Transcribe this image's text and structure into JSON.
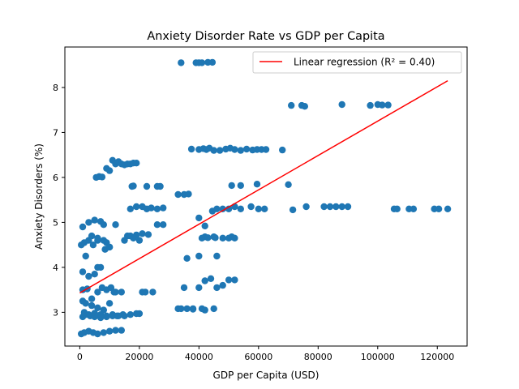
{
  "chart_data": {
    "type": "scatter",
    "title": "Anxiety Disorder Rate vs GDP per Capita",
    "xlabel": "GDP per Capita (USD)",
    "ylabel": "Anxiety Disorders (%)",
    "xlim": [
      -5000,
      130000
    ],
    "ylim": [
      2.25,
      8.9
    ],
    "x_ticks": [
      0,
      20000,
      40000,
      60000,
      80000,
      100000,
      120000
    ],
    "y_ticks": [
      3,
      4,
      5,
      6,
      7,
      8
    ],
    "grid": false,
    "legend_position": "top-right",
    "legend": [
      "Linear regression (R² = 0.40)"
    ],
    "point_color": "#1f77b4",
    "line_color": "#ff0000",
    "series": [
      {
        "kind": "points",
        "x": [
          34000,
          39000,
          40000,
          41000,
          43000,
          44500,
          71000,
          74500,
          75500,
          88000,
          97500,
          100000,
          101500,
          103500,
          37500,
          40000,
          41500,
          42500,
          43500,
          45000,
          47000,
          49000,
          50500,
          52000,
          54000,
          56000,
          58000,
          59500,
          61000,
          62500,
          68000,
          5500,
          6500,
          7500,
          9000,
          10000,
          11000,
          12000,
          13000,
          14000,
          15000,
          16000,
          17000,
          18000,
          19000,
          17500,
          18000,
          22500,
          26000,
          27000,
          33000,
          35000,
          36500,
          51000,
          54000,
          59500,
          70000,
          1000,
          3000,
          5000,
          7000,
          8000,
          17000,
          19000,
          21000,
          22500,
          24000,
          26000,
          28000,
          40000,
          42000,
          44500,
          46000,
          48000,
          50000,
          52000,
          54000,
          57500,
          60000,
          62000,
          71500,
          76000,
          82000,
          84000,
          86000,
          88000,
          90000,
          105500,
          106500,
          110500,
          112000,
          119000,
          120500,
          123500,
          500,
          1500,
          3000,
          4500,
          6000,
          9000,
          12000,
          26000,
          28000,
          42000,
          45000,
          51000,
          2000,
          4000,
          6000,
          8000,
          10000,
          15000,
          17000,
          19000,
          21000,
          23000,
          41000,
          43000,
          45500,
          48000,
          50000,
          52000,
          1000,
          3000,
          5000,
          6000,
          7000,
          8500,
          10000,
          16000,
          18000,
          20000,
          1000,
          2500,
          4000,
          6000,
          7500,
          9000,
          10500,
          11500,
          36000,
          40000,
          46000,
          1000,
          2000,
          4000,
          6000,
          8000,
          10000,
          12000,
          14000,
          35000,
          40000,
          42000,
          44000,
          46000,
          48000,
          50000,
          52000,
          1000,
          2000,
          3500,
          5000,
          7000,
          9000,
          11000,
          12500,
          14500,
          20000,
          22000,
          24500,
          34000,
          38000,
          41000,
          45000,
          1500,
          3000,
          5000,
          7000,
          9000,
          11000,
          13000,
          15000,
          17000,
          19000,
          21000,
          33000,
          36000,
          38000,
          42000,
          500,
          1500,
          3000,
          4500,
          6000,
          8000,
          10000,
          12000,
          14000
        ],
        "y": [
          8.55,
          8.55,
          8.55,
          8.55,
          8.56,
          8.56,
          7.6,
          7.6,
          7.58,
          7.62,
          7.6,
          7.62,
          7.61,
          7.61,
          6.63,
          6.62,
          6.64,
          6.62,
          6.65,
          6.6,
          6.6,
          6.63,
          6.65,
          6.62,
          6.6,
          6.63,
          6.61,
          6.62,
          6.62,
          6.62,
          6.61,
          6.0,
          6.02,
          6.01,
          6.2,
          6.15,
          6.38,
          6.3,
          6.35,
          6.3,
          6.28,
          6.3,
          6.3,
          6.32,
          6.32,
          5.8,
          5.81,
          5.8,
          5.8,
          5.8,
          5.62,
          5.62,
          5.63,
          5.82,
          5.82,
          5.85,
          5.84,
          4.9,
          5.0,
          5.05,
          5.02,
          4.95,
          5.3,
          5.35,
          5.35,
          5.3,
          5.32,
          5.3,
          5.32,
          5.1,
          4.92,
          5.25,
          5.3,
          5.3,
          5.3,
          5.35,
          5.3,
          5.35,
          5.3,
          5.3,
          5.28,
          5.35,
          5.35,
          5.35,
          5.35,
          5.35,
          5.35,
          5.3,
          5.3,
          5.3,
          5.3,
          5.3,
          5.3,
          5.3,
          4.5,
          4.55,
          4.6,
          4.5,
          4.6,
          4.55,
          4.95,
          4.95,
          4.95,
          4.68,
          4.68,
          4.68,
          4.25,
          4.7,
          4.65,
          4.6,
          4.45,
          4.6,
          4.7,
          4.72,
          4.75,
          4.73,
          4.65,
          4.66,
          4.66,
          4.65,
          4.65,
          4.65,
          3.9,
          3.8,
          3.85,
          4.0,
          4.0,
          4.4,
          4.45,
          4.7,
          4.65,
          4.6,
          3.5,
          3.52,
          3.3,
          3.45,
          3.55,
          3.5,
          3.55,
          3.45,
          4.2,
          4.25,
          4.25,
          3.25,
          3.2,
          3.15,
          3.1,
          3.05,
          3.2,
          3.45,
          3.45,
          3.55,
          3.55,
          3.7,
          3.75,
          3.55,
          3.6,
          3.72,
          3.72,
          2.9,
          2.95,
          2.92,
          2.98,
          2.95,
          2.92,
          2.95,
          2.92,
          2.95,
          2.97,
          3.45,
          3.45,
          3.08,
          3.08,
          3.08,
          3.08,
          3.0,
          2.95,
          2.9,
          2.88,
          2.9,
          2.92,
          2.92,
          2.92,
          2.95,
          2.97,
          3.45,
          3.08,
          3.08,
          3.07,
          3.05,
          2.52,
          2.55,
          2.58,
          2.55,
          2.52,
          2.55,
          2.58,
          2.6,
          2.6
        ]
      },
      {
        "kind": "line",
        "name": "Linear regression (R² = 0.40)",
        "x": [
          0,
          123500
        ],
        "y": [
          3.43,
          8.15
        ]
      }
    ]
  }
}
